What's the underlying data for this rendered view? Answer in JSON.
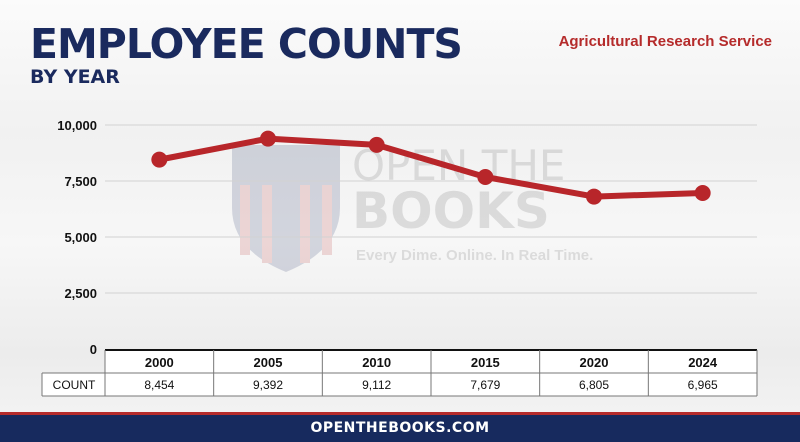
{
  "header": {
    "title": "EMPLOYEE COUNTS",
    "subtitle": "BY YEAR",
    "agency": "Agricultural Research Service"
  },
  "watermark": {
    "line1": "OPEN THE",
    "line2": "BOOKS",
    "tagline": "Every Dime. Online. In Real Time."
  },
  "footer": {
    "text": "OPENTHEBOOKS.COM"
  },
  "colors": {
    "navy": "#1a2a5e",
    "red": "#b52b2b",
    "line": "#b8262a"
  },
  "chart_data": {
    "type": "line",
    "categories": [
      "2000",
      "2005",
      "2010",
      "2015",
      "2020",
      "2024"
    ],
    "values": [
      8454,
      9392,
      9112,
      7679,
      6805,
      6965
    ],
    "value_labels": [
      "8,454",
      "9,392",
      "9,112",
      "7,679",
      "6,805",
      "6,965"
    ],
    "row_label": "COUNT",
    "yticks": [
      0,
      2500,
      5000,
      7500,
      10000
    ],
    "ytick_labels": [
      "0",
      "2,500",
      "5,000",
      "7,500",
      "10,000"
    ],
    "ylim": [
      0,
      10000
    ],
    "grid": true,
    "legend": "none"
  }
}
